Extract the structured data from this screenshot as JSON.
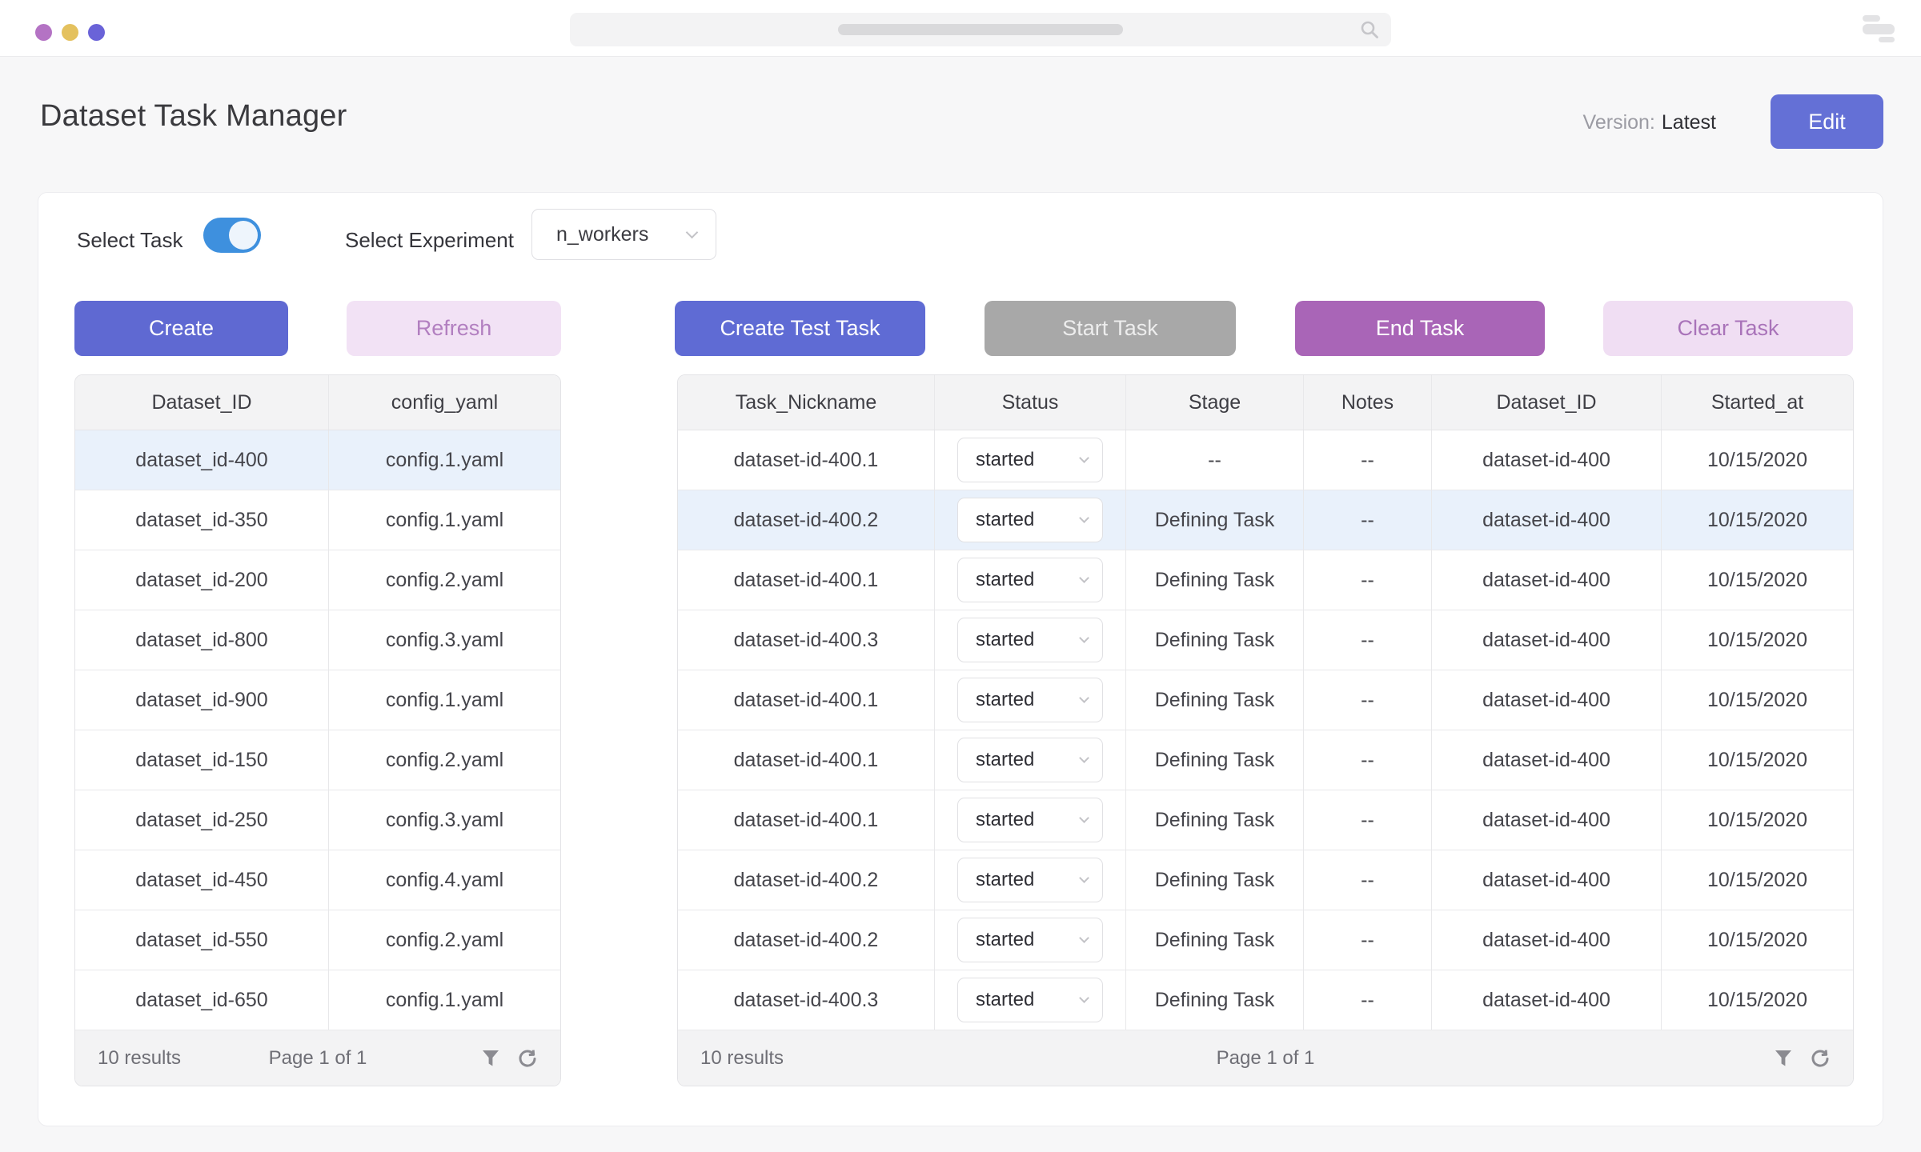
{
  "topbar": {
    "traffic_light_colors": [
      "#b473c4",
      "#e4c15e",
      "#6a63d8"
    ],
    "icons": {
      "search": "search-icon",
      "window_controls": "window-controls-icon"
    }
  },
  "header": {
    "title": "Dataset Task Manager",
    "version_label": "Version:",
    "version_value": "Latest",
    "edit_button_label": "Edit"
  },
  "controls": {
    "select_task_label": "Select Task",
    "select_task_on": true,
    "select_experiment_label": "Select Experiment",
    "experiment_selected": "n_workers"
  },
  "action_buttons": {
    "create": "Create",
    "refresh": "Refresh",
    "create_test_task": "Create Test Task",
    "start_task": "Start Task",
    "end_task": "End Task",
    "clear_task": "Clear Task"
  },
  "dataset_table": {
    "columns": [
      "Dataset_ID",
      "config_yaml"
    ],
    "rows": [
      [
        "dataset_id-400",
        "config.1.yaml"
      ],
      [
        "dataset_id-350",
        "config.1.yaml"
      ],
      [
        "dataset_id-200",
        "config.2.yaml"
      ],
      [
        "dataset_id-800",
        "config.3.yaml"
      ],
      [
        "dataset_id-900",
        "config.1.yaml"
      ],
      [
        "dataset_id-150",
        "config.2.yaml"
      ],
      [
        "dataset_id-250",
        "config.3.yaml"
      ],
      [
        "dataset_id-450",
        "config.4.yaml"
      ],
      [
        "dataset_id-550",
        "config.2.yaml"
      ],
      [
        "dataset_id-650",
        "config.1.yaml"
      ]
    ],
    "highlighted_row_index": 0,
    "footer": {
      "results_text": "10 results",
      "page_text": "Page 1 of 1",
      "icons": [
        "filter-icon",
        "refresh-icon"
      ]
    }
  },
  "task_table": {
    "columns": [
      "Task_Nickname",
      "Status",
      "Notes",
      "Stage",
      "Dataset_ID",
      "Started_at"
    ],
    "column_order": [
      "Task_Nickname",
      "Status",
      "Stage",
      "Notes",
      "Dataset_ID",
      "Started_at"
    ],
    "rows": [
      {
        "task_nickname": "dataset-id-400.1",
        "status": "started",
        "stage": "--",
        "notes": "--",
        "dataset_id": "dataset-id-400",
        "started_at": "10/15/2020"
      },
      {
        "task_nickname": "dataset-id-400.2",
        "status": "started",
        "stage": "Defining Task",
        "notes": "--",
        "dataset_id": "dataset-id-400",
        "started_at": "10/15/2020"
      },
      {
        "task_nickname": "dataset-id-400.1",
        "status": "started",
        "stage": "Defining Task",
        "notes": "--",
        "dataset_id": "dataset-id-400",
        "started_at": "10/15/2020"
      },
      {
        "task_nickname": "dataset-id-400.3",
        "status": "started",
        "stage": "Defining Task",
        "notes": "--",
        "dataset_id": "dataset-id-400",
        "started_at": "10/15/2020"
      },
      {
        "task_nickname": "dataset-id-400.1",
        "status": "started",
        "stage": "Defining Task",
        "notes": "--",
        "dataset_id": "dataset-id-400",
        "started_at": "10/15/2020"
      },
      {
        "task_nickname": "dataset-id-400.1",
        "status": "started",
        "stage": "Defining Task",
        "notes": "--",
        "dataset_id": "dataset-id-400",
        "started_at": "10/15/2020"
      },
      {
        "task_nickname": "dataset-id-400.1",
        "status": "started",
        "stage": "Defining Task",
        "notes": "--",
        "dataset_id": "dataset-id-400",
        "started_at": "10/15/2020"
      },
      {
        "task_nickname": "dataset-id-400.2",
        "status": "started",
        "stage": "Defining Task",
        "notes": "--",
        "dataset_id": "dataset-id-400",
        "started_at": "10/15/2020"
      },
      {
        "task_nickname": "dataset-id-400.2",
        "status": "started",
        "stage": "Defining Task",
        "notes": "--",
        "dataset_id": "dataset-id-400",
        "started_at": "10/15/2020"
      },
      {
        "task_nickname": "dataset-id-400.3",
        "status": "started",
        "stage": "Defining Task",
        "notes": "--",
        "dataset_id": "dataset-id-400",
        "started_at": "10/15/2020"
      }
    ],
    "highlighted_row_index": 1,
    "footer": {
      "results_text": "10 results",
      "page_text": "Page 1 of 1",
      "icons": [
        "filter-icon",
        "refresh-icon"
      ]
    }
  },
  "colors": {
    "page_bg": "#f7f7f8",
    "accent_indigo": "#5f6bd4",
    "accent_purple": "#a965b7",
    "accent_lavender_bg": "#f2e2f5",
    "disabled_gray": "#a8a8a8",
    "toggle_blue": "#3e90de",
    "row_highlight": "#e9f1fb",
    "table_header_bg": "#f3f3f4"
  }
}
